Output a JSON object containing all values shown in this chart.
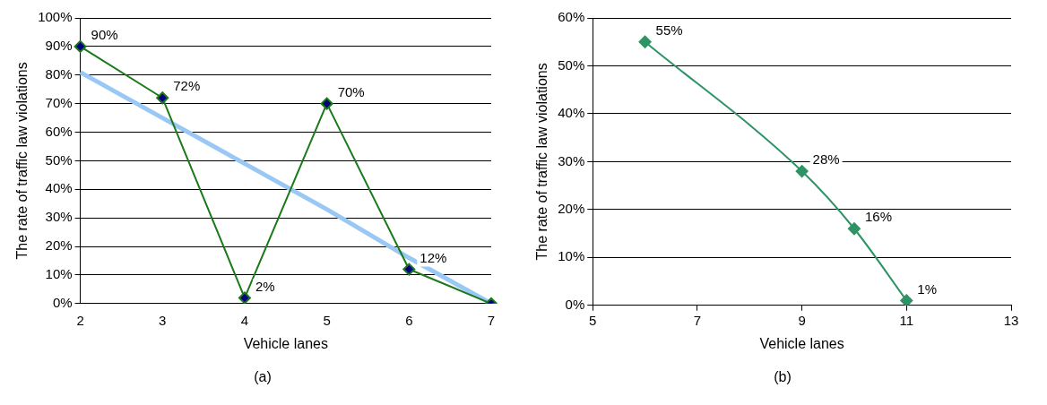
{
  "chart_data": [
    {
      "type": "line",
      "xlabel": "Vehicle lanes",
      "ylabel": "The rate of traffic law violations",
      "categories": [
        "2",
        "3",
        "4",
        "5",
        "6",
        "7"
      ],
      "ylim": [
        0,
        100
      ],
      "yticks": [
        {
          "value": 0,
          "label": "0%"
        },
        {
          "value": 10,
          "label": "10%"
        },
        {
          "value": 20,
          "label": "20%"
        },
        {
          "value": 30,
          "label": "30%"
        },
        {
          "value": 40,
          "label": "40%"
        },
        {
          "value": 50,
          "label": "50%"
        },
        {
          "value": 60,
          "label": "60%"
        },
        {
          "value": 70,
          "label": "70%"
        },
        {
          "value": 80,
          "label": "80%"
        },
        {
          "value": 90,
          "label": "90%"
        },
        {
          "value": 100,
          "label": "100%"
        }
      ],
      "grid": "y",
      "legend": false,
      "marker": "diamond",
      "line_style": "solid",
      "annotations": [
        "(a)"
      ],
      "series": [
        {
          "color": "#1a7a1a",
          "values": [
            90,
            72,
            2,
            70,
            12,
            0
          ],
          "value_labels": [
            "90%",
            "72%",
            "2%",
            "70%",
            "12%",
            null
          ]
        },
        {
          "type": "line",
          "color": "#99c8f5",
          "marker": "none",
          "values": [
            81,
            65,
            49,
            33,
            16,
            0
          ]
        }
      ]
    },
    {
      "type": "line",
      "xlabel": "Vehicle lanes",
      "ylabel": "The rate of traffic law violations",
      "x": [
        6,
        9,
        10,
        11
      ],
      "xlim": [
        5,
        13
      ],
      "xticks": [
        5,
        7,
        9,
        11,
        13
      ],
      "ylim": [
        0,
        60
      ],
      "yticks": [
        {
          "value": 0,
          "label": "0%"
        },
        {
          "value": 10,
          "label": "10%"
        },
        {
          "value": 20,
          "label": "20%"
        },
        {
          "value": 30,
          "label": "30%"
        },
        {
          "value": 40,
          "label": "40%"
        },
        {
          "value": 50,
          "label": "50%"
        },
        {
          "value": 60,
          "label": "60%"
        }
      ],
      "grid": "y",
      "legend": false,
      "marker": "diamond",
      "line_style": "solid",
      "annotations": [
        "(b)"
      ],
      "series": [
        {
          "color": "#2e9466",
          "values": [
            55,
            28,
            16,
            1
          ],
          "value_labels": [
            "55%",
            "28%",
            "16%",
            "1%"
          ]
        }
      ]
    }
  ]
}
